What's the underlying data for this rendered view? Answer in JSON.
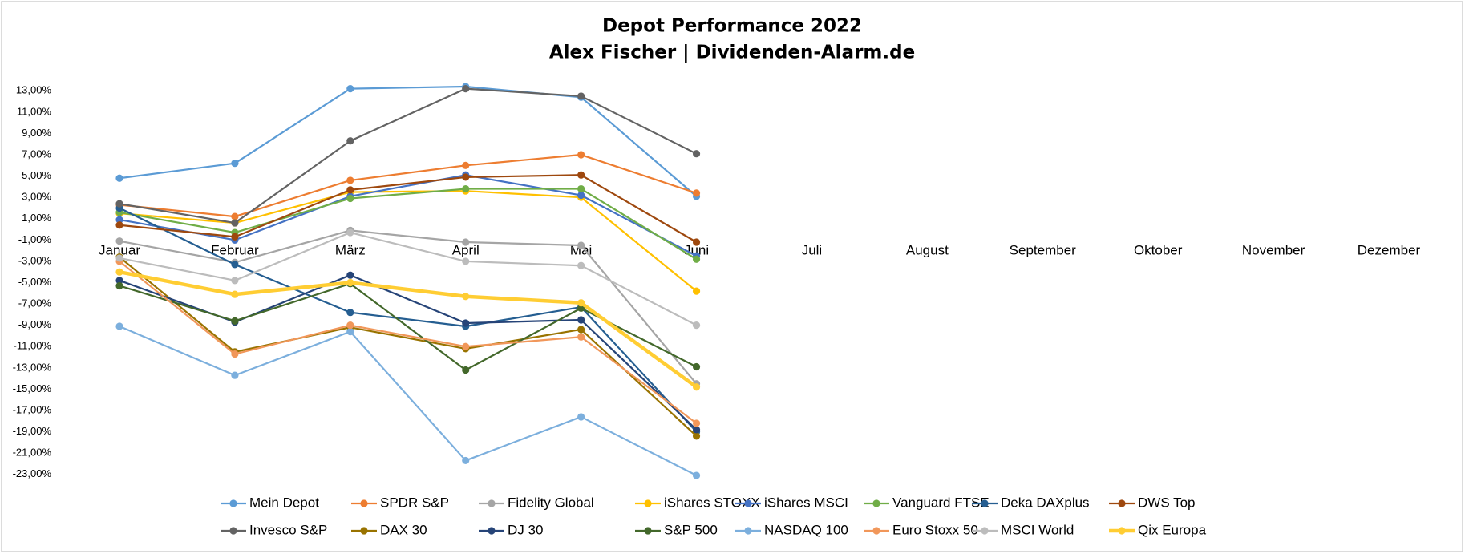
{
  "chart_data": {
    "type": "line",
    "title": "Depot Performance 2022",
    "subtitle": "Alex Fischer | Dividenden-Alarm.de",
    "categories": [
      "Januar",
      "Februar",
      "März",
      "April",
      "Mai",
      "Juni",
      "Juli",
      "August",
      "September",
      "Oktober",
      "November",
      "Dezember"
    ],
    "ylim": [
      -24,
      14
    ],
    "yticks": [
      {
        "value": 13,
        "label": "13,00%"
      },
      {
        "value": 11,
        "label": "11,00%"
      },
      {
        "value": 9,
        "label": "9,00%"
      },
      {
        "value": 7,
        "label": "7,00%"
      },
      {
        "value": 5,
        "label": "5,00%"
      },
      {
        "value": 3,
        "label": "3,00%"
      },
      {
        "value": 1,
        "label": "1,00%"
      },
      {
        "value": -1,
        "label": "-1,00%"
      },
      {
        "value": -3,
        "label": "-3,00%"
      },
      {
        "value": -5,
        "label": "-5,00%"
      },
      {
        "value": -7,
        "label": "-7,00%"
      },
      {
        "value": -9,
        "label": "-9,00%"
      },
      {
        "value": -11,
        "label": "-11,00%"
      },
      {
        "value": -13,
        "label": "-13,00%"
      },
      {
        "value": -15,
        "label": "-15,00%"
      },
      {
        "value": -17,
        "label": "-17,00%"
      },
      {
        "value": -19,
        "label": "-19,00%"
      },
      {
        "value": -21,
        "label": "-21,00%"
      },
      {
        "value": -23,
        "label": "-23,00%"
      }
    ],
    "grid": false,
    "legend": "bottom",
    "series": [
      {
        "name": "Mein Depot",
        "color": "#5b9bd5",
        "values": [
          4.8,
          6.2,
          13.2,
          13.4,
          12.4,
          3.1,
          null,
          null,
          null,
          null,
          null,
          null
        ]
      },
      {
        "name": "SPDR S&P",
        "color": "#ed7d31",
        "values": [
          2.3,
          1.2,
          4.6,
          6.0,
          7.0,
          3.4,
          null,
          null,
          null,
          null,
          null,
          null
        ]
      },
      {
        "name": "Fidelity Global",
        "color": "#a5a5a5",
        "values": [
          -1.1,
          -3.1,
          -0.1,
          -1.2,
          -1.5,
          -14.5,
          null,
          null,
          null,
          null,
          null,
          null
        ]
      },
      {
        "name": "iShares STOXX",
        "color": "#ffc000",
        "values": [
          1.5,
          0.6,
          3.5,
          3.6,
          3.0,
          -5.8,
          null,
          null,
          null,
          null,
          null,
          null
        ]
      },
      {
        "name": "iShares MSCI",
        "color": "#4472c4",
        "values": [
          0.9,
          -1.0,
          3.1,
          5.1,
          3.2,
          -2.5,
          null,
          null,
          null,
          null,
          null,
          null
        ]
      },
      {
        "name": "Vanguard FTSE",
        "color": "#70ad47",
        "values": [
          1.6,
          -0.3,
          2.9,
          3.8,
          3.8,
          -2.8,
          null,
          null,
          null,
          null,
          null,
          null
        ]
      },
      {
        "name": "Deka DAXplus",
        "color": "#255e91",
        "values": [
          2.0,
          -3.3,
          -7.8,
          -9.1,
          -7.3,
          -19.0,
          null,
          null,
          null,
          null,
          null,
          null
        ]
      },
      {
        "name": "DWS Top",
        "color": "#9e480e",
        "values": [
          0.4,
          -0.7,
          3.7,
          4.9,
          5.1,
          -1.2,
          null,
          null,
          null,
          null,
          null,
          null
        ]
      },
      {
        "name": "Invesco S&P",
        "color": "#636363",
        "values": [
          2.4,
          0.6,
          8.3,
          13.2,
          12.5,
          7.1,
          null,
          null,
          null,
          null,
          null,
          null
        ]
      },
      {
        "name": "DAX 30",
        "color": "#997300",
        "values": [
          -2.6,
          -11.5,
          -9.2,
          -11.2,
          -9.4,
          -19.4,
          null,
          null,
          null,
          null,
          null,
          null
        ]
      },
      {
        "name": "DJ 30",
        "color": "#264478",
        "values": [
          -4.8,
          -8.7,
          -4.3,
          -8.8,
          -8.5,
          -18.8,
          null,
          null,
          null,
          null,
          null,
          null
        ]
      },
      {
        "name": "S&P 500",
        "color": "#43682b",
        "values": [
          -5.3,
          -8.6,
          -5.1,
          -13.2,
          -7.4,
          -12.9,
          null,
          null,
          null,
          null,
          null,
          null
        ]
      },
      {
        "name": "NASDAQ 100",
        "color": "#7cafdd",
        "values": [
          -9.1,
          -13.7,
          -9.6,
          -21.7,
          -17.6,
          -23.1,
          null,
          null,
          null,
          null,
          null,
          null
        ]
      },
      {
        "name": "Euro Stoxx 50",
        "color": "#f1975a",
        "values": [
          -3.0,
          -11.7,
          -9.0,
          -11.0,
          -10.1,
          -18.2,
          null,
          null,
          null,
          null,
          null,
          null
        ]
      },
      {
        "name": "MSCI World",
        "color": "#bcbcbc",
        "values": [
          -2.7,
          -4.8,
          -0.3,
          -3.0,
          -3.4,
          -9.0,
          null,
          null,
          null,
          null,
          null,
          null
        ]
      },
      {
        "name": "Qix Europa",
        "color": "#ffcd33",
        "values": [
          -4.0,
          -6.1,
          -5.0,
          -6.3,
          -6.9,
          -14.8,
          null,
          null,
          null,
          null,
          null,
          null
        ]
      }
    ]
  }
}
